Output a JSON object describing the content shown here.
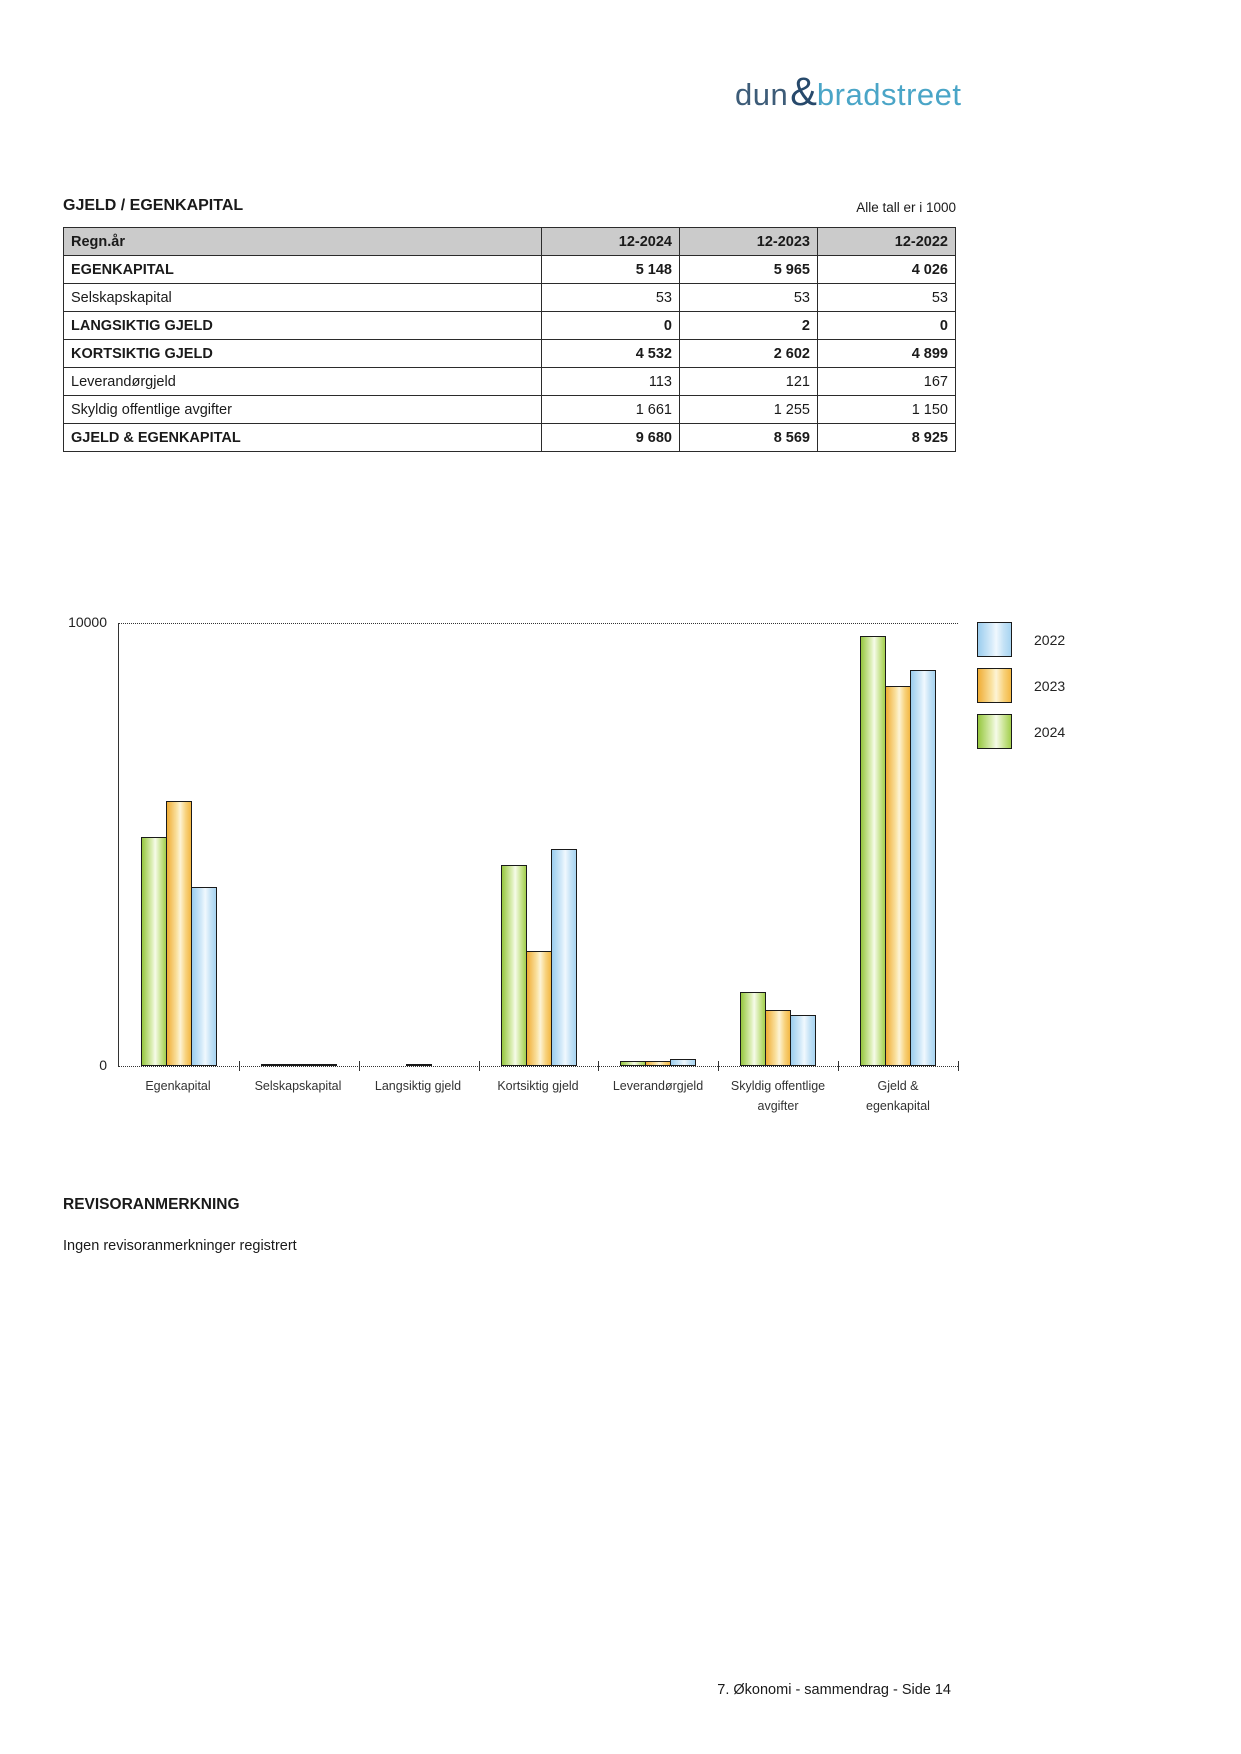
{
  "logo": {
    "part1": "dun",
    "amp": "&",
    "part2": "bradstreet"
  },
  "section": {
    "title": "GJELD / EGENKAPITAL",
    "note": "Alle tall er i 1000"
  },
  "table": {
    "header": [
      "Regn.år",
      "12-2024",
      "12-2023",
      "12-2022"
    ],
    "rows": [
      {
        "label": "EGENKAPITAL",
        "bold": true,
        "values": [
          "5 148",
          "5 965",
          "4 026"
        ]
      },
      {
        "label": "Selskapskapital",
        "bold": false,
        "values": [
          "53",
          "53",
          "53"
        ]
      },
      {
        "label": "LANGSIKTIG GJELD",
        "bold": true,
        "values": [
          "0",
          "2",
          "0"
        ]
      },
      {
        "label": "KORTSIKTIG GJELD",
        "bold": true,
        "values": [
          "4 532",
          "2 602",
          "4 899"
        ]
      },
      {
        "label": "Leverandørgjeld",
        "bold": false,
        "values": [
          "113",
          "121",
          "167"
        ]
      },
      {
        "label": "Skyldig offentlige avgifter",
        "bold": false,
        "values": [
          "1 661",
          "1 255",
          "1 150"
        ]
      },
      {
        "label": "GJELD & EGENKAPITAL",
        "bold": true,
        "values": [
          "9 680",
          "8 569",
          "8 925"
        ]
      }
    ]
  },
  "chart_data": {
    "type": "bar",
    "categories": [
      "Egenkapital",
      "Selskapskapital",
      "Langsiktig gjeld",
      "Kortsiktig gjeld",
      "Leverandørgjeld",
      "Skyldig offentlige avgifter",
      "Gjeld & egenkapital"
    ],
    "series": [
      {
        "name": "2024",
        "color": "#9cc943",
        "values": [
          5148,
          53,
          0,
          4532,
          113,
          1661,
          9680
        ]
      },
      {
        "name": "2023",
        "color": "#f3b844",
        "values": [
          5965,
          53,
          2,
          2602,
          121,
          1255,
          8569
        ]
      },
      {
        "name": "2022",
        "color": "#a7d4f1",
        "values": [
          4026,
          53,
          0,
          4899,
          167,
          1150,
          8925
        ]
      }
    ],
    "legend": [
      "2022",
      "2023",
      "2024"
    ],
    "legend_position": "right-top",
    "ylim": [
      0,
      10000
    ],
    "ytick_top": "10000",
    "ytick_bottom": "0",
    "grid": "dotted line at 10000 and dotted baseline"
  },
  "revisor": {
    "heading": "REVISORANMERKNING",
    "text": "Ingen revisoranmerkninger registrert"
  },
  "footer": {
    "text": "7. Økonomi - sammendrag - Side 14"
  },
  "colors": {
    "table_header_bg": "#cbcbcb",
    "logo_dun": "#3d5c78",
    "logo_amp": "#27496b",
    "logo_bradstreet": "#4aa5c7"
  }
}
